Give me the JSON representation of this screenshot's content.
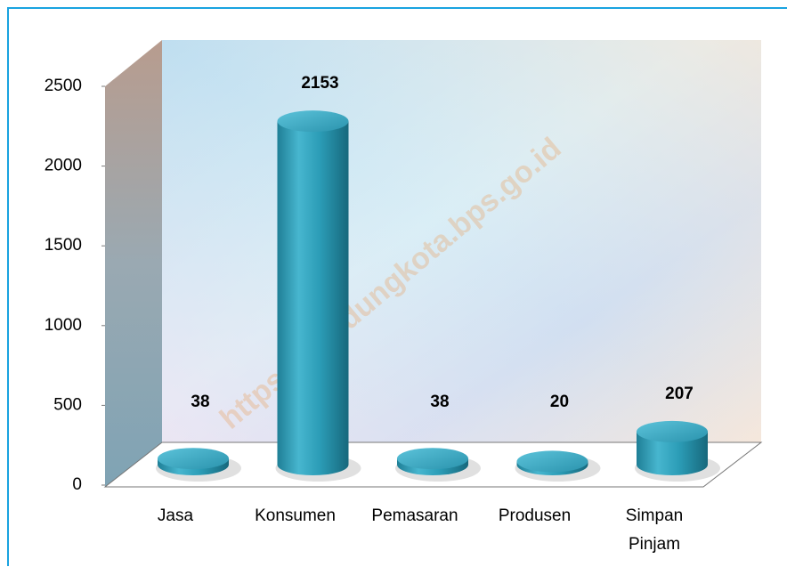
{
  "chart_data": {
    "type": "bar",
    "categories": [
      "Jasa",
      "Konsumen",
      "Pemasaran",
      "Produsen",
      "Simpan Pinjam"
    ],
    "values": [
      38,
      2153,
      38,
      20,
      207
    ],
    "color": "#2fa3bd",
    "ylim": [
      0,
      2500
    ],
    "yticks": [
      0,
      500,
      1000,
      1500,
      2000,
      2500
    ],
    "watermark": "https://bandungkota.bps.go.id"
  }
}
